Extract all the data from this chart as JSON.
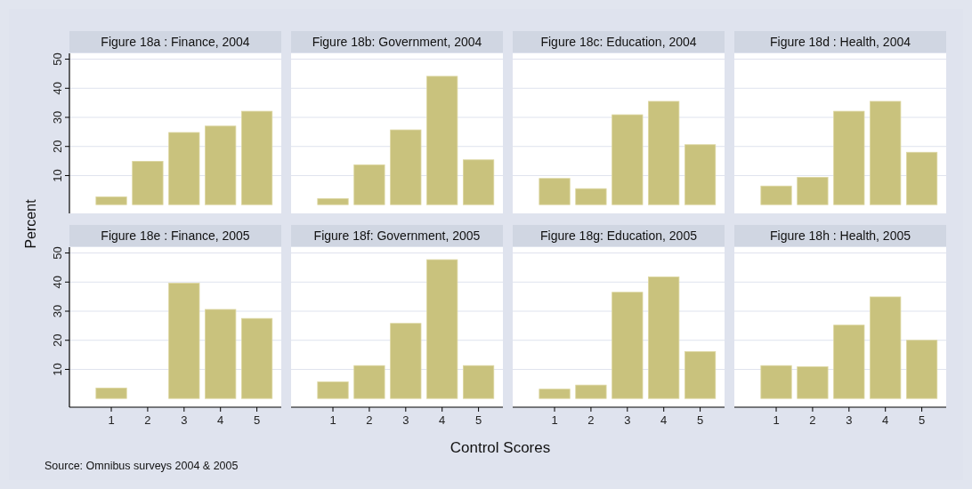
{
  "chart_data": [
    {
      "type": "bar",
      "title": "Figure 18a : Finance, 2004",
      "ylabel": "Percent",
      "annotations": [
        "Source: Omnibus surveys 2004 & 2005"
      ],
      "x": [
        1,
        2,
        3,
        4,
        5
      ],
      "values": [
        2.7,
        14.9,
        24.8,
        27.0,
        32.1
      ],
      "color": "#c9c27d",
      "xlim": [
        -0.15,
        5.67
      ],
      "ylim": [
        -3,
        52
      ],
      "yticks": [
        10,
        20,
        30,
        40,
        50
      ],
      "grid": "y",
      "tick_labels": "y"
    },
    {
      "type": "bar",
      "title": "Figure 18b: Government, 2004",
      "x": [
        1,
        2,
        3,
        4,
        5
      ],
      "values": [
        2.1,
        13.7,
        25.7,
        44.1,
        15.4
      ],
      "color": "#c9c27d",
      "xlim": [
        -0.15,
        5.67
      ],
      "ylim": [
        -3,
        52
      ],
      "yticks": [
        10,
        20,
        30,
        40,
        50
      ],
      "grid": "y",
      "tick_labels": false
    },
    {
      "type": "bar",
      "title": "Figure 18c: Education, 2004",
      "x": [
        1,
        2,
        3,
        4,
        5
      ],
      "values": [
        9.0,
        5.5,
        30.9,
        35.5,
        20.6
      ],
      "color": "#c9c27d",
      "xlim": [
        -0.15,
        5.67
      ],
      "ylim": [
        -3,
        52
      ],
      "yticks": [
        10,
        20,
        30,
        40,
        50
      ],
      "grid": "y",
      "tick_labels": false
    },
    {
      "type": "bar",
      "title": "Figure 18d : Health, 2004",
      "x": [
        1,
        2,
        3,
        4,
        5
      ],
      "values": [
        6.4,
        9.4,
        32.1,
        35.5,
        18.0
      ],
      "color": "#c9c27d",
      "xlim": [
        -0.15,
        5.67
      ],
      "ylim": [
        -3,
        52
      ],
      "yticks": [
        10,
        20,
        30,
        40,
        50
      ],
      "grid": "y",
      "tick_labels": false
    },
    {
      "type": "bar",
      "title": "Figure 18e : Finance, 2005",
      "x": [
        1,
        2,
        3,
        4,
        5
      ],
      "values": [
        3.6,
        0,
        39.6,
        30.6,
        27.5
      ],
      "color": "#c9c27d",
      "xlim": [
        -0.15,
        5.67
      ],
      "xticks": [
        1,
        2,
        3,
        4,
        5
      ],
      "ylim": [
        -3,
        52
      ],
      "yticks": [
        10,
        20,
        30,
        40,
        50
      ],
      "grid": "y"
    },
    {
      "type": "bar",
      "title": "Figure 18f: Government, 2005",
      "xlabel": "Control Scores",
      "x": [
        1,
        2,
        3,
        4,
        5
      ],
      "values": [
        5.7,
        11.3,
        25.8,
        47.7,
        11.3
      ],
      "color": "#c9c27d",
      "xlim": [
        -0.15,
        5.67
      ],
      "xticks": [
        1,
        2,
        3,
        4,
        5
      ],
      "ylim": [
        -3,
        52
      ],
      "yticks": [
        10,
        20,
        30,
        40,
        50
      ],
      "grid": "y",
      "tick_labels": "x"
    },
    {
      "type": "bar",
      "title": "Figure 18g: Education, 2005",
      "x": [
        1,
        2,
        3,
        4,
        5
      ],
      "values": [
        3.2,
        4.6,
        36.5,
        41.8,
        16.1
      ],
      "color": "#c9c27d",
      "xlim": [
        -0.15,
        5.67
      ],
      "xticks": [
        1,
        2,
        3,
        4,
        5
      ],
      "ylim": [
        -3,
        52
      ],
      "yticks": [
        10,
        20,
        30,
        40,
        50
      ],
      "grid": "y",
      "tick_labels": "x"
    },
    {
      "type": "bar",
      "title": "Figure 18h : Health, 2005",
      "x": [
        1,
        2,
        3,
        4,
        5
      ],
      "values": [
        11.3,
        10.9,
        25.2,
        34.9,
        20.0
      ],
      "color": "#c9c27d",
      "xlim": [
        -0.15,
        5.67
      ],
      "xticks": [
        1,
        2,
        3,
        4,
        5
      ],
      "ylim": [
        -3,
        52
      ],
      "yticks": [
        10,
        20,
        30,
        40,
        50
      ],
      "grid": "y",
      "tick_labels": "x"
    }
  ]
}
